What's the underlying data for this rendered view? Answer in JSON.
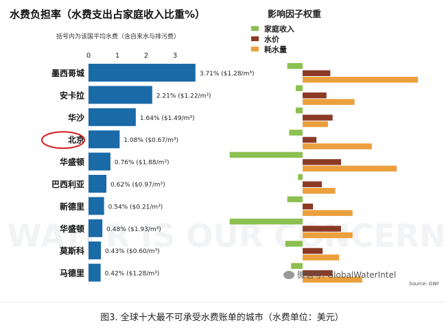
{
  "chart_data": {
    "type": "bar",
    "title": "水费负担率（水费支出占家庭收入比重%）",
    "subtitle": "括号内为该国平均水费（含自来水与排污费）",
    "x_ticks": [
      "0",
      "1",
      "2",
      "3"
    ],
    "xlim": [
      0,
      4
    ],
    "categories": [
      "墨西哥城",
      "安卡拉",
      "华沙",
      "北京",
      "华盛顿",
      "巴西利亚",
      "新德里",
      "华盛顿",
      "莫斯科",
      "马德里"
    ],
    "values": [
      3.71,
      2.21,
      1.64,
      1.08,
      0.76,
      0.62,
      0.54,
      0.48,
      0.43,
      0.42
    ],
    "value_labels": [
      "3.71% ($1.28/m³)",
      "2.21% ($1.22/m³)",
      "1.64% ($1.49/m³)",
      "1.08% ($0.67/m³)",
      "0.76% ($1.88/m³)",
      "0.62% ($0.97/m³)",
      "0.54% ($0.21/m³)",
      "0.48% ($1.93/m³)",
      "0.43% ($0.60/m³)",
      "0.42% ($1.28/m³)"
    ],
    "highlighted_category": "北京",
    "bar_color": "#1a6aa8",
    "factors": {
      "title": "影响因子权重",
      "type": "diverging-bar",
      "series": [
        {
          "name": "家庭收入",
          "color": "#8cc050",
          "values": [
            -0.4,
            -0.18,
            -0.18,
            -0.35,
            -1.9,
            -0.12,
            -0.4,
            -1.9,
            -0.45,
            -0.3
          ]
        },
        {
          "name": "水价",
          "color": "#8b3a26",
          "values": [
            0.72,
            0.62,
            0.78,
            0.36,
            1.0,
            0.5,
            0.27,
            1.0,
            0.52,
            0.78
          ]
        },
        {
          "name": "耗水量",
          "color": "#eba03d",
          "values": [
            3.0,
            1.35,
            0.66,
            1.8,
            2.45,
            0.85,
            1.3,
            1.3,
            0.95,
            1.55
          ]
        }
      ]
    }
  },
  "source": "Source: GWI",
  "watermark": "微信号: GlobalWaterIntel",
  "caption": "图3. 全球十大最不可承受水费账单的城市（水费单位：美元）"
}
